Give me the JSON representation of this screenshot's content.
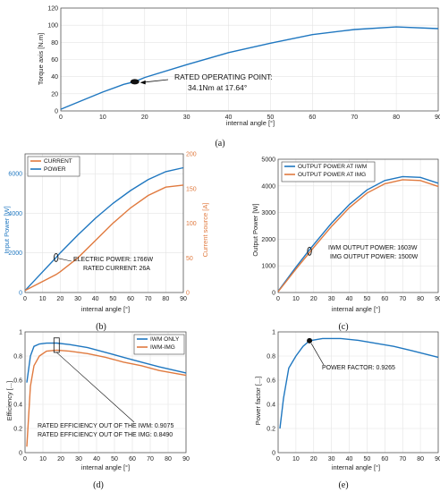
{
  "chart_data": [
    {
      "id": "a",
      "panel_label": "(a)",
      "type": "line",
      "xlabel": "internal angle [°]",
      "ylabel": "Torque axis [N.m]",
      "xlim": [
        0,
        90
      ],
      "ylim": [
        0,
        120
      ],
      "xticks": [
        0,
        10,
        20,
        30,
        40,
        50,
        60,
        70,
        80,
        90
      ],
      "yticks": [
        0,
        20,
        40,
        60,
        80,
        100,
        120
      ],
      "grid": true,
      "series": [
        {
          "color": "#1f77c0",
          "x": [
            0,
            5,
            10,
            15,
            17.64,
            20,
            30,
            40,
            50,
            60,
            70,
            80,
            90
          ],
          "y": [
            2,
            12,
            22,
            31,
            34.1,
            39,
            54,
            68,
            79,
            89,
            95,
            98,
            96
          ]
        }
      ],
      "marker": {
        "x": 17.64,
        "y": 34.1
      },
      "annotation": [
        "RATED OPERATING POINT:",
        "34.1Nm at 17.64°"
      ]
    },
    {
      "id": "b",
      "panel_label": "(b)",
      "type": "line",
      "xlabel": "internal angle [°]",
      "ylabel": "Input Power [W]",
      "ylabel_right": "Current source [A]",
      "xlim": [
        0,
        90
      ],
      "ylim": [
        0,
        7000
      ],
      "ylim_right": [
        0,
        200
      ],
      "xticks": [
        0,
        10,
        20,
        30,
        40,
        50,
        60,
        70,
        80,
        90
      ],
      "yticks": [
        0,
        2000,
        4000,
        6000
      ],
      "yticks_right": [
        0,
        50,
        100,
        150,
        200
      ],
      "grid": true,
      "legend": [
        {
          "name": "CURRENT",
          "color": "#e07a3f"
        },
        {
          "name": "POWER",
          "color": "#1f77c0"
        }
      ],
      "series": [
        {
          "name": "POWER",
          "axis": "left",
          "color": "#1f77c0",
          "x": [
            0,
            10,
            17.64,
            20,
            30,
            40,
            50,
            60,
            70,
            80,
            90
          ],
          "y": [
            100,
            1050,
            1766,
            2000,
            2900,
            3750,
            4500,
            5150,
            5700,
            6100,
            6300
          ]
        },
        {
          "name": "CURRENT",
          "axis": "right",
          "color": "#e07a3f",
          "x": [
            0,
            10,
            17.64,
            20,
            30,
            40,
            50,
            60,
            70,
            80,
            90
          ],
          "y": [
            3,
            16,
            26,
            30,
            50,
            75,
            100,
            122,
            140,
            152,
            155
          ]
        }
      ],
      "marker": {
        "x": 17.64,
        "y": 1766
      },
      "annotation": [
        "ELECTRIC POWER:  1766W",
        "RATED CURRENT:  26A"
      ]
    },
    {
      "id": "c",
      "panel_label": "(c)",
      "type": "line",
      "xlabel": "internal angle [°]",
      "ylabel": "Output Power [W]",
      "xlim": [
        0,
        90
      ],
      "ylim": [
        0,
        5000
      ],
      "xticks": [
        0,
        10,
        20,
        30,
        40,
        50,
        60,
        70,
        80,
        90
      ],
      "yticks": [
        0,
        1000,
        2000,
        3000,
        4000,
        5000
      ],
      "grid": true,
      "legend": [
        {
          "name": "OUTPUT POWER AT IWM",
          "color": "#1f77c0"
        },
        {
          "name": "OUTPUT POWER AT IMG",
          "color": "#e07a3f"
        }
      ],
      "series": [
        {
          "name": "OUTPUT POWER AT IWM",
          "color": "#1f77c0",
          "x": [
            0,
            10,
            17.64,
            20,
            30,
            40,
            50,
            60,
            70,
            80,
            90
          ],
          "y": [
            50,
            950,
            1603,
            1800,
            2600,
            3300,
            3850,
            4200,
            4350,
            4320,
            4100
          ]
        },
        {
          "name": "OUTPUT POWER AT IMG",
          "color": "#e07a3f",
          "x": [
            0,
            10,
            17.64,
            20,
            30,
            40,
            50,
            60,
            70,
            80,
            90
          ],
          "y": [
            30,
            880,
            1500,
            1690,
            2480,
            3180,
            3730,
            4080,
            4230,
            4200,
            3980
          ]
        }
      ],
      "marker": {
        "x": 17.64,
        "y": 1550
      },
      "annotation": [
        "IWM OUTPUT POWER:  1603W",
        "IMG OUTPUT POWER:  1500W"
      ]
    },
    {
      "id": "d",
      "panel_label": "(d)",
      "type": "line",
      "xlabel": "internal angle [°]",
      "ylabel": "Efficiency [...]",
      "xlim": [
        0,
        90
      ],
      "ylim": [
        0,
        1
      ],
      "xticks": [
        0,
        10,
        20,
        30,
        40,
        50,
        60,
        70,
        80,
        90
      ],
      "yticks": [
        0,
        0.2,
        0.4,
        0.6,
        0.8,
        1
      ],
      "grid": true,
      "legend": [
        {
          "name": "IWM ONLY",
          "color": "#1f77c0"
        },
        {
          "name": "IWM-IMG",
          "color": "#e07a3f"
        }
      ],
      "series": [
        {
          "name": "IWM ONLY",
          "color": "#1f77c0",
          "x": [
            1,
            3,
            5,
            8,
            12,
            17.64,
            25,
            35,
            45,
            55,
            65,
            75,
            90
          ],
          "y": [
            0.58,
            0.8,
            0.88,
            0.9,
            0.907,
            0.9075,
            0.895,
            0.87,
            0.83,
            0.79,
            0.75,
            0.71,
            0.66
          ]
        },
        {
          "name": "IWM-IMG",
          "color": "#e07a3f",
          "x": [
            1,
            3,
            5,
            8,
            12,
            17.64,
            25,
            35,
            45,
            55,
            65,
            75,
            90
          ],
          "y": [
            0.05,
            0.55,
            0.72,
            0.8,
            0.84,
            0.849,
            0.84,
            0.82,
            0.79,
            0.75,
            0.72,
            0.68,
            0.64
          ]
        }
      ],
      "annotation": [
        "RATED EFFICIENCY OUT OF THE IWM:   0.9075",
        "RATED EFFICIENCY OUT OF THE IMG:   0.8490"
      ]
    },
    {
      "id": "e",
      "panel_label": "(e)",
      "type": "line",
      "xlabel": "internal angle [°]",
      "ylabel": "Power factor [...]",
      "xlim": [
        0,
        90
      ],
      "ylim": [
        0,
        1
      ],
      "xticks": [
        0,
        10,
        20,
        30,
        40,
        50,
        60,
        70,
        80,
        90
      ],
      "yticks": [
        0,
        0.2,
        0.4,
        0.6,
        0.8,
        1
      ],
      "grid": true,
      "series": [
        {
          "color": "#1f77c0",
          "x": [
            1,
            3,
            6,
            10,
            14,
            17.64,
            25,
            35,
            45,
            55,
            65,
            75,
            90
          ],
          "y": [
            0.2,
            0.45,
            0.7,
            0.8,
            0.88,
            0.9265,
            0.945,
            0.945,
            0.93,
            0.905,
            0.88,
            0.845,
            0.79
          ]
        }
      ],
      "marker": {
        "x": 17.64,
        "y": 0.9265
      },
      "annotation": [
        "POWER FACTOR:  0.9265"
      ]
    }
  ]
}
